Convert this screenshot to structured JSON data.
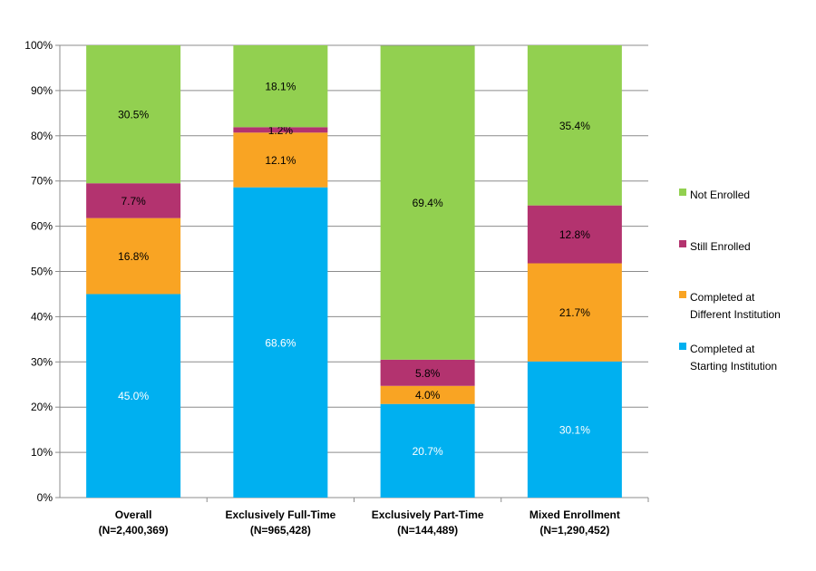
{
  "chart_data": {
    "type": "bar",
    "stacked": true,
    "categories": [
      {
        "name": "Overall",
        "n": "(N=2,400,369)"
      },
      {
        "name": "Exclusively Full-Time",
        "n": "(N=965,428)"
      },
      {
        "name": "Exclusively Part-Time",
        "n": "(N=144,489)"
      },
      {
        "name": "Mixed Enrollment",
        "n": "(N=1,290,452)"
      }
    ],
    "series": [
      {
        "name": "Completed at Starting Institution",
        "legend_lines": [
          "Completed at",
          "Starting Institution"
        ],
        "color": "#00b0f0",
        "label_color": "#ffffff",
        "values": [
          45.0,
          68.6,
          20.7,
          30.1
        ]
      },
      {
        "name": "Completed at Different Institution",
        "legend_lines": [
          "Completed at",
          "Different Institution"
        ],
        "color": "#f9a423",
        "label_color": "#000000",
        "values": [
          16.8,
          12.1,
          4.0,
          21.7
        ]
      },
      {
        "name": "Still Enrolled",
        "legend_lines": [
          "Still Enrolled"
        ],
        "color": "#b3336f",
        "label_color": "#000000",
        "values": [
          7.7,
          1.2,
          5.8,
          12.8
        ]
      },
      {
        "name": "Not Enrolled",
        "legend_lines": [
          "Not Enrolled"
        ],
        "color": "#92d050",
        "label_color": "#000000",
        "values": [
          30.5,
          18.1,
          69.4,
          35.4
        ]
      }
    ],
    "ylim": [
      0,
      100
    ],
    "yticks": [
      "0%",
      "10%",
      "20%",
      "30%",
      "40%",
      "50%",
      "60%",
      "70%",
      "80%",
      "90%",
      "100%"
    ],
    "grid": true,
    "legend_position": "right",
    "title": "",
    "xlabel": "",
    "ylabel": ""
  }
}
